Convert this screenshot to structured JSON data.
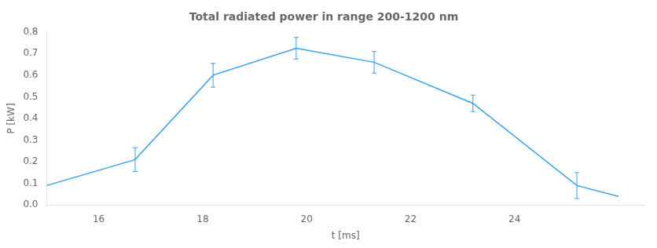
{
  "chart_data": {
    "type": "line",
    "title": "Total radiated power in range 200-1200 nm",
    "xlabel": "t [ms]",
    "ylabel": "P [kW]",
    "x": [
      15.0,
      16.7,
      18.2,
      19.8,
      21.3,
      23.2,
      25.2,
      26.0
    ],
    "values": [
      0.09,
      0.21,
      0.6,
      0.725,
      0.66,
      0.47,
      0.09,
      0.04
    ],
    "errors": [
      0.0,
      0.055,
      0.055,
      0.05,
      0.05,
      0.038,
      0.06,
      0.0
    ],
    "xlim": [
      15.0,
      26.5
    ],
    "ylim": [
      0.0,
      0.8
    ],
    "xticks": [
      16,
      18,
      20,
      22,
      24
    ],
    "yticks": [
      {
        "value": 0.0,
        "label": "0.0"
      },
      0.1,
      0.2,
      0.3,
      0.4,
      0.5,
      0.6,
      0.7,
      0.8
    ],
    "grid": false
  }
}
